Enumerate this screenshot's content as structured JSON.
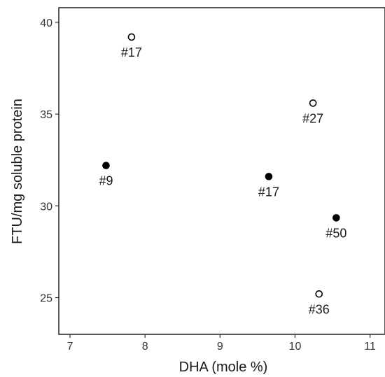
{
  "chart_data": {
    "type": "scatter",
    "title": "",
    "xlabel": "DHA (mole %)",
    "ylabel": "FTU/mg soluble protein",
    "xlim": [
      6.85,
      11.2
    ],
    "ylim": [
      23,
      40.8
    ],
    "x_ticks": [
      7,
      8,
      9,
      10,
      11
    ],
    "y_ticks": [
      25,
      30,
      35,
      40
    ],
    "grid": false,
    "legend": "none",
    "series": [
      {
        "marker": "open-circle",
        "points": [
          {
            "x": 7.82,
            "y": 39.2,
            "label": "#17"
          },
          {
            "x": 10.24,
            "y": 35.6,
            "label": "#27"
          },
          {
            "x": 10.32,
            "y": 25.2,
            "label": "#36"
          }
        ]
      },
      {
        "marker": "filled-circle",
        "points": [
          {
            "x": 7.48,
            "y": 32.2,
            "label": "#9"
          },
          {
            "x": 9.65,
            "y": 31.6,
            "label": "#17"
          },
          {
            "x": 10.55,
            "y": 29.35,
            "label": "#50"
          }
        ]
      }
    ]
  }
}
